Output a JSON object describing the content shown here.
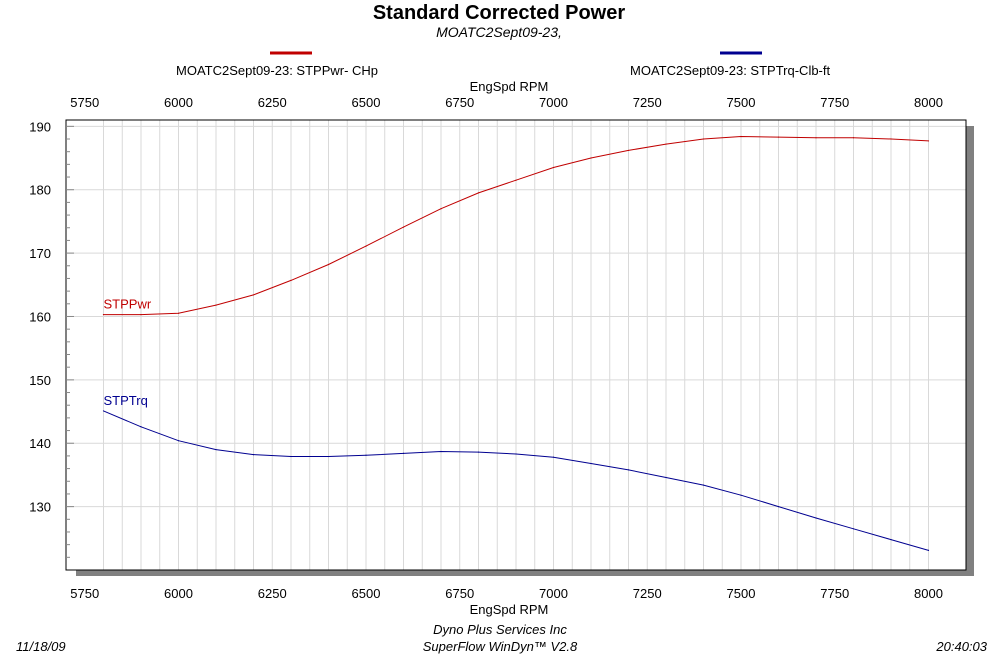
{
  "chart_data": {
    "type": "line",
    "title": "Standard Corrected Power",
    "subtitle": "MOATC2Sept09-23,",
    "xlabel": "EngSpd  RPM",
    "xlim": [
      5700,
      8100
    ],
    "ylim": [
      120,
      191
    ],
    "x_ticks": [
      5750,
      6000,
      6250,
      6500,
      6750,
      7000,
      7250,
      7500,
      7750,
      8000
    ],
    "y_ticks": [
      130,
      140,
      150,
      160,
      170,
      180,
      190
    ],
    "grid": true,
    "legend_position": "top",
    "series": [
      {
        "legend": "MOATC2Sept09-23: STPPwr- CHp",
        "label": "STPPwr",
        "color": "#c00000",
        "x": [
          5800,
          5900,
          6000,
          6100,
          6200,
          6300,
          6400,
          6500,
          6600,
          6700,
          6800,
          6900,
          7000,
          7100,
          7200,
          7300,
          7400,
          7500,
          7600,
          7700,
          7800,
          7900,
          8000
        ],
        "y": [
          160.3,
          160.3,
          160.5,
          161.8,
          163.4,
          165.7,
          168.2,
          171.1,
          174.1,
          177.0,
          179.5,
          181.5,
          183.5,
          185.0,
          186.2,
          187.2,
          188.0,
          188.4,
          188.3,
          188.2,
          188.2,
          188.0,
          187.7
        ]
      },
      {
        "legend": "MOATC2Sept09-23: STPTrq-Clb-ft",
        "label": "STPTrq",
        "color": "#000090",
        "x": [
          5800,
          5900,
          6000,
          6100,
          6200,
          6300,
          6400,
          6500,
          6600,
          6700,
          6800,
          6900,
          7000,
          7100,
          7200,
          7300,
          7400,
          7500,
          7600,
          7700,
          7800,
          7900,
          8000
        ],
        "y": [
          145.1,
          142.6,
          140.4,
          139.0,
          138.2,
          137.9,
          137.9,
          138.1,
          138.4,
          138.7,
          138.6,
          138.3,
          137.8,
          136.8,
          135.8,
          134.6,
          133.4,
          131.8,
          130.0,
          128.2,
          126.5,
          124.8,
          123.1
        ]
      }
    ]
  },
  "footer": {
    "date": "11/18/09",
    "line1": "Dyno Plus Services Inc",
    "line2": "SuperFlow WinDyn™ V2.8",
    "time": "20:40:03"
  }
}
